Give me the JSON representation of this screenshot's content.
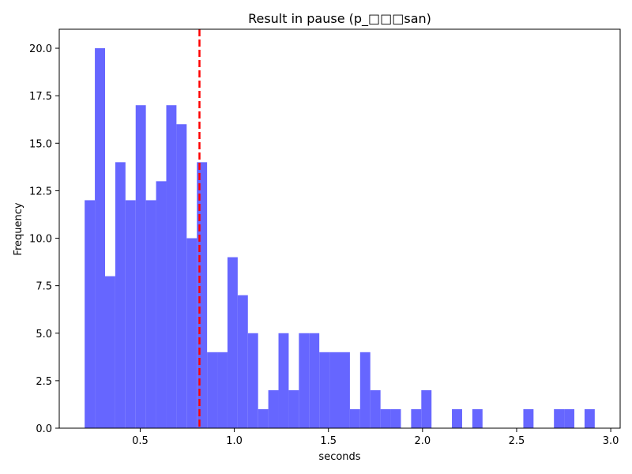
{
  "chart_data": {
    "type": "bar",
    "title": "Result in pause (p_□□□san)",
    "xlabel": "seconds",
    "ylabel": "Frequency",
    "xlim": [
      0.07,
      3.05
    ],
    "ylim": [
      0,
      21
    ],
    "xticks": [
      0.5,
      1.0,
      1.5,
      2.0,
      2.5,
      3.0
    ],
    "xtick_labels": [
      "0.5",
      "1.0",
      "1.5",
      "2.0",
      "2.5",
      "3.0"
    ],
    "yticks": [
      0.0,
      2.5,
      5.0,
      7.5,
      10.0,
      12.5,
      15.0,
      17.5,
      20.0
    ],
    "ytick_labels": [
      "0.0",
      "2.5",
      "5.0",
      "7.5",
      "10.0",
      "12.5",
      "15.0",
      "17.5",
      "20.0"
    ],
    "bin_start": 0.205,
    "bin_width": 0.0542,
    "counts": [
      12,
      20,
      8,
      14,
      12,
      17,
      12,
      13,
      17,
      16,
      10,
      14,
      4,
      4,
      9,
      7,
      5,
      1,
      2,
      5,
      2,
      5,
      5,
      4,
      4,
      4,
      1,
      4,
      2,
      1,
      1,
      0,
      1,
      2,
      0,
      0,
      1,
      0,
      1,
      0,
      0,
      0,
      0,
      1,
      0,
      0,
      1,
      1,
      0,
      1
    ],
    "bar_color": "#6666ff",
    "mean_line": {
      "x": 0.815,
      "color": "#ff0000",
      "style": "dashed"
    },
    "grid": false
  }
}
